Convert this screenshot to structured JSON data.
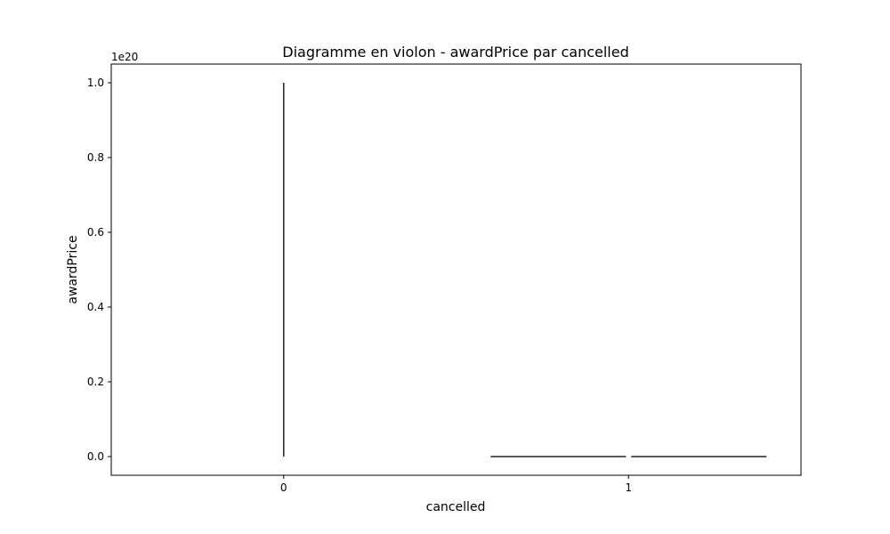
{
  "chart_data": {
    "type": "violin",
    "title": "Diagramme en violon - awardPrice par cancelled",
    "xlabel": "cancelled",
    "ylabel": "awardPrice",
    "y_offset_label": "1e20",
    "y_scale_factor": 1e+20,
    "categories": [
      "0",
      "1"
    ],
    "yticks": [
      0.0,
      0.2,
      0.4,
      0.6,
      0.8,
      1.0
    ],
    "ytick_labels": [
      "0.0",
      "0.2",
      "0.4",
      "0.6",
      "0.8",
      "1.0"
    ],
    "ylim": [
      -0.05,
      1.05
    ],
    "grid": false,
    "legend": "none",
    "series": [
      {
        "category": "0",
        "y_min": 0.0,
        "y_max": 1.0,
        "half_width": 0.004
      },
      {
        "category": "1",
        "y_min": 0.0,
        "y_max": 0.0,
        "half_width": 0.4
      }
    ],
    "colors": {
      "violin_stroke": "#222222",
      "axes": "#000000",
      "background": "#ffffff"
    }
  }
}
